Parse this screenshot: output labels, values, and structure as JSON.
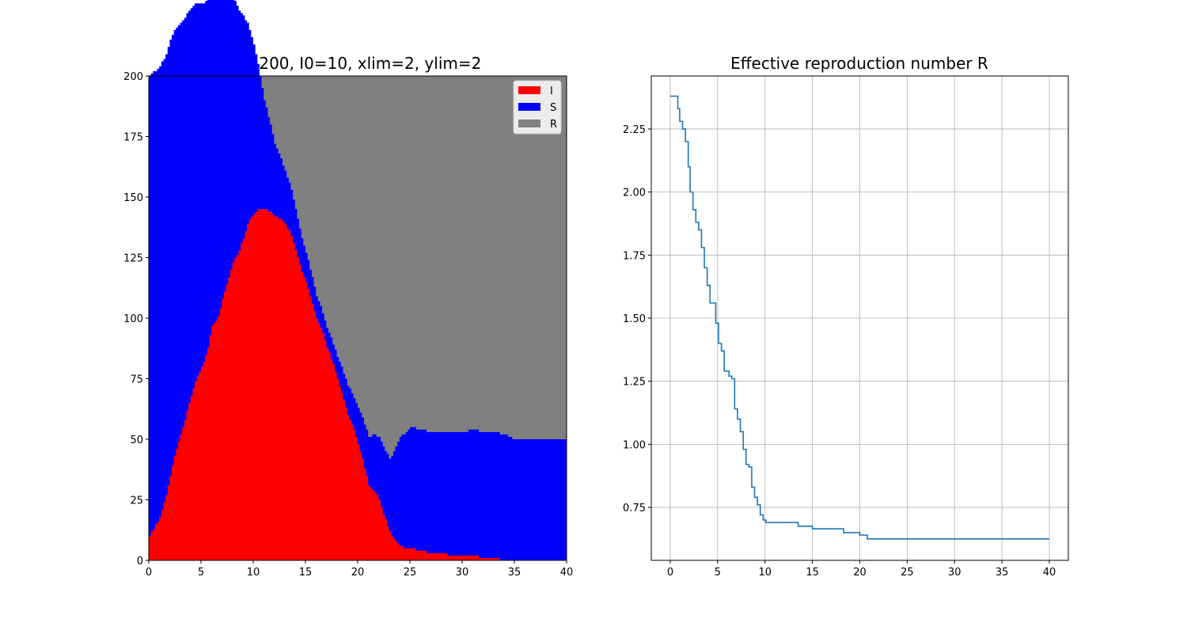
{
  "chart_data": [
    {
      "type": "area",
      "stacked": true,
      "title": "N=200, I0=10, xlim=2, ylim=2",
      "xlabel": "",
      "ylabel": "",
      "xlim": [
        0,
        40
      ],
      "ylim": [
        0,
        200
      ],
      "xticks": [
        0,
        5,
        10,
        15,
        20,
        25,
        30,
        35,
        40
      ],
      "yticks": [
        0,
        25,
        50,
        75,
        100,
        125,
        150,
        175,
        200
      ],
      "grid": false,
      "legend": "top-right",
      "series": [
        {
          "name": "I",
          "color": "#ff0000",
          "x": [
            0,
            0.5,
            1,
            1.5,
            2,
            2.5,
            3,
            3.5,
            4,
            4.5,
            5,
            5.5,
            6,
            6.5,
            7,
            7.5,
            8,
            8.5,
            9,
            9.5,
            10,
            10.5,
            11,
            11.5,
            12,
            12.5,
            13,
            13.5,
            14,
            14.5,
            15,
            15.5,
            16,
            16.5,
            17,
            17.5,
            18,
            18.5,
            19,
            19.5,
            20,
            20.5,
            21,
            21.5,
            22,
            22.5,
            23,
            23.5,
            24,
            24.5,
            25,
            26,
            27,
            28,
            29,
            30,
            31,
            32,
            33,
            34,
            40
          ],
          "values": [
            10,
            14,
            18,
            25,
            35,
            45,
            52,
            60,
            68,
            75,
            80,
            86,
            97,
            99,
            108,
            115,
            123,
            127,
            133,
            140,
            143,
            145,
            145,
            144,
            142,
            141,
            139,
            135,
            128,
            120,
            115,
            108,
            100,
            95,
            88,
            82,
            75,
            68,
            60,
            55,
            48,
            40,
            31,
            29,
            25,
            18,
            12,
            8,
            6,
            5,
            5,
            4,
            3,
            3,
            2,
            2,
            2,
            1,
            1,
            0,
            0
          ]
        },
        {
          "name": "S",
          "color": "#0000ff",
          "x": [
            0,
            1,
            2,
            3,
            4,
            5,
            6,
            7,
            8,
            9,
            10,
            11,
            12,
            13,
            14,
            15,
            16,
            17,
            18,
            19,
            20,
            21,
            22,
            23,
            24,
            25,
            26,
            27,
            28,
            29,
            30,
            31,
            32,
            33,
            34,
            35,
            36,
            37,
            38,
            39,
            40
          ],
          "values": [
            190,
            186,
            180,
            170,
            160,
            150,
            140,
            127,
            110,
            92,
            70,
            45,
            30,
            22,
            17,
            12,
            9,
            8,
            9,
            12,
            15,
            20,
            26,
            30,
            45,
            50,
            50,
            50,
            50,
            51,
            51,
            52,
            52,
            52,
            52,
            50,
            50,
            50,
            50,
            50,
            50
          ]
        },
        {
          "name": "R",
          "color": "#808080",
          "values_note": "R fills the remainder up to N=200"
        }
      ]
    },
    {
      "type": "line",
      "title": "Effective reproduction number R",
      "xlabel": "",
      "ylabel": "",
      "xlim": [
        -2,
        42
      ],
      "ylim": [
        0.54,
        2.46
      ],
      "xticks": [
        0,
        5,
        10,
        15,
        20,
        25,
        30,
        35,
        40
      ],
      "yticks": [
        0.75,
        1.0,
        1.25,
        1.5,
        1.75,
        2.0,
        2.25
      ],
      "ytick_labels": [
        "0.75",
        "1.00",
        "1.25",
        "1.50",
        "1.75",
        "2.00",
        "2.25"
      ],
      "grid": true,
      "series": [
        {
          "color": "#1f77b4",
          "x": [
            0,
            0.6,
            0.8,
            1.0,
            1.3,
            1.6,
            1.9,
            2.1,
            2.4,
            2.7,
            3.0,
            3.3,
            3.6,
            3.9,
            4.2,
            4.5,
            4.8,
            5.1,
            5.4,
            5.7,
            6.0,
            6.2,
            6.5,
            6.8,
            7.1,
            7.4,
            7.7,
            8.0,
            8.3,
            8.6,
            8.9,
            9.2,
            9.5,
            9.8,
            10.1,
            10.5,
            13.5,
            15.0,
            18.3,
            20.0,
            20.8,
            40
          ],
          "values": [
            2.38,
            2.38,
            2.33,
            2.28,
            2.25,
            2.2,
            2.1,
            2.0,
            1.93,
            1.88,
            1.85,
            1.78,
            1.7,
            1.63,
            1.56,
            1.56,
            1.48,
            1.4,
            1.37,
            1.29,
            1.29,
            1.27,
            1.26,
            1.14,
            1.1,
            1.05,
            0.98,
            0.92,
            0.91,
            0.83,
            0.79,
            0.76,
            0.72,
            0.7,
            0.69,
            0.69,
            0.675,
            0.665,
            0.65,
            0.64,
            0.625,
            0.625
          ]
        }
      ]
    }
  ]
}
